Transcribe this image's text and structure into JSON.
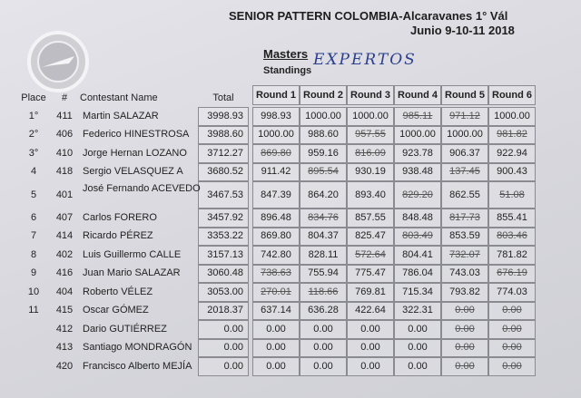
{
  "header": {
    "title": "SENIOR PATTERN COLOMBIA-Alcaravanes 1° Vál",
    "dates": "Junio 9-10-11 2018",
    "class": "Masters",
    "subtitle": "Standings",
    "note": "EXPERTOS"
  },
  "table": {
    "columns": [
      "Place",
      "#",
      "Contestant Name",
      "Total",
      "Round 1",
      "Round 2",
      "Round 3",
      "Round 4",
      "Round 5",
      "Round 6"
    ],
    "rows": [
      {
        "place": "1°",
        "number": "411",
        "name": "Martin SALAZAR",
        "total": "3998.93",
        "rounds": [
          "998.93",
          "1000.00",
          "1000.00",
          "985.11",
          "971.12",
          "1000.00"
        ],
        "dropped": [
          3,
          4
        ]
      },
      {
        "place": "2°",
        "number": "406",
        "name": "Federico HINESTROSA",
        "total": "3988.60",
        "rounds": [
          "1000.00",
          "988.60",
          "957.55",
          "1000.00",
          "1000.00",
          "981.82"
        ],
        "dropped": [
          2,
          5
        ]
      },
      {
        "place": "3°",
        "number": "410",
        "name": "Jorge Hernan LOZANO",
        "total": "3712.27",
        "rounds": [
          "869.80",
          "959.16",
          "816.09",
          "923.78",
          "906.37",
          "922.94"
        ],
        "dropped": [
          0,
          2
        ]
      },
      {
        "place": "4",
        "number": "418",
        "name": "Sergio VELASQUEZ A",
        "total": "3680.52",
        "rounds": [
          "911.42",
          "895.54",
          "930.19",
          "938.48",
          "137.45",
          "900.43"
        ],
        "dropped": [
          1,
          4
        ]
      },
      {
        "place": "5",
        "number": "401",
        "name": "José Fernando ACEVEDO",
        "total": "3467.53",
        "rounds": [
          "847.39",
          "864.20",
          "893.40",
          "829.20",
          "862.55",
          "51.08"
        ],
        "dropped": [
          3,
          5
        ]
      },
      {
        "place": "6",
        "number": "407",
        "name": "Carlos FORERO",
        "total": "3457.92",
        "rounds": [
          "896.48",
          "834.76",
          "857.55",
          "848.48",
          "817.73",
          "855.41"
        ],
        "dropped": [
          1,
          4
        ]
      },
      {
        "place": "7",
        "number": "414",
        "name": "Ricardo PÉREZ",
        "total": "3353.22",
        "rounds": [
          "869.80",
          "804.37",
          "825.47",
          "803.49",
          "853.59",
          "803.46"
        ],
        "dropped": [
          3,
          5
        ]
      },
      {
        "place": "8",
        "number": "402",
        "name": "Luis Guillermo CALLE",
        "total": "3157.13",
        "rounds": [
          "742.80",
          "828.11",
          "572.64",
          "804.41",
          "732.07",
          "781.82"
        ],
        "dropped": [
          2,
          4
        ]
      },
      {
        "place": "9",
        "number": "416",
        "name": "Juan Mario SALAZAR",
        "total": "3060.48",
        "rounds": [
          "738.63",
          "755.94",
          "775.47",
          "786.04",
          "743.03",
          "676.19"
        ],
        "dropped": [
          0,
          5
        ]
      },
      {
        "place": "10",
        "number": "404",
        "name": "Roberto VÉLEZ",
        "total": "3053.00",
        "rounds": [
          "270.01",
          "118.66",
          "769.81",
          "715.34",
          "793.82",
          "774.03"
        ],
        "dropped": [
          0,
          1
        ]
      },
      {
        "place": "11",
        "number": "415",
        "name": "Oscar GÓMEZ",
        "total": "2018.37",
        "rounds": [
          "637.14",
          "636.28",
          "422.64",
          "322.31",
          "0.00",
          "0.00"
        ],
        "dropped": [
          4,
          5
        ]
      },
      {
        "place": null,
        "number": "412",
        "name": "Dario GUTIÉRREZ",
        "total": "0.00",
        "rounds": [
          "0.00",
          "0.00",
          "0.00",
          "0.00",
          "0.00",
          "0.00"
        ],
        "dropped": [
          4,
          5
        ]
      },
      {
        "place": null,
        "number": "413",
        "name": "Santiago MONDRAGÓN",
        "total": "0.00",
        "rounds": [
          "0.00",
          "0.00",
          "0.00",
          "0.00",
          "0.00",
          "0.00"
        ],
        "dropped": [
          4,
          5
        ]
      },
      {
        "place": null,
        "number": "420",
        "name": "Francisco Alberto MEJÍA",
        "total": "0.00",
        "rounds": [
          "0.00",
          "0.00",
          "0.00",
          "0.00",
          "0.00",
          "0.00"
        ],
        "dropped": [
          4,
          5
        ]
      }
    ]
  }
}
